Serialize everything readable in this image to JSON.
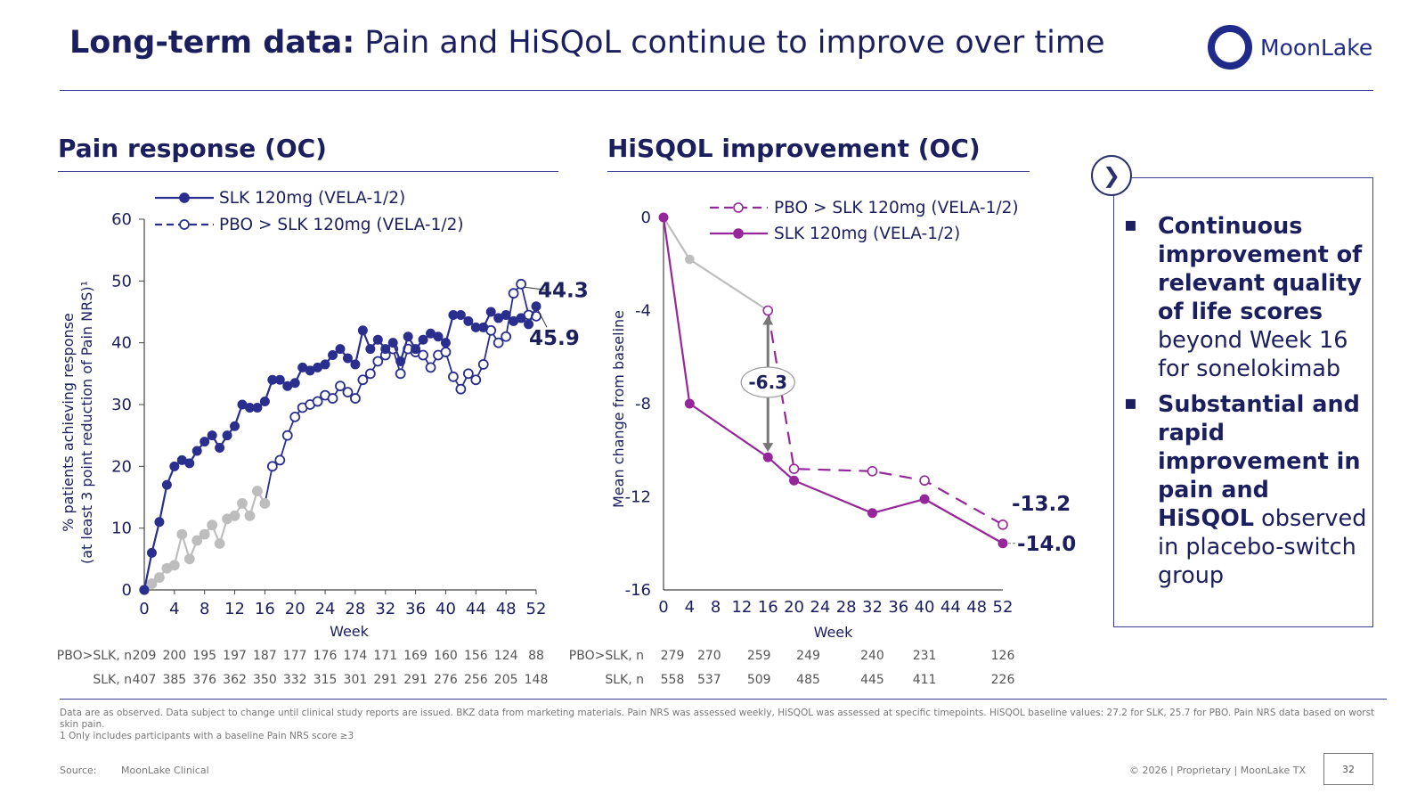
{
  "header": {
    "title_bold": "Long-term data:",
    "title_rest": " Pain and HiSQoL continue to improve over time",
    "logo_text": "MoonLake"
  },
  "left_section_title": "Pain response (OC)",
  "right_section_title": "HiSQOL improvement (OC)",
  "colors": {
    "navy": "#2a2f8e",
    "grey": "#bdbdbd",
    "purple": "#96279a",
    "text": "#1b1f5e"
  },
  "chart_data": [
    {
      "type": "line",
      "title": "Pain response (OC)",
      "xlabel": "Week",
      "ylabel": [
        "% patients achieving response",
        "(at least 3 point reduction of Pain NRS)¹"
      ],
      "xlim": [
        0,
        52
      ],
      "ylim": [
        0,
        60
      ],
      "xticks": [
        0,
        4,
        8,
        12,
        16,
        20,
        24,
        28,
        32,
        36,
        40,
        44,
        48,
        52
      ],
      "yticks": [
        0,
        10,
        20,
        30,
        40,
        50,
        60
      ],
      "legend": [
        "SLK 120mg (VELA-1/2)",
        "PBO > SLK 120mg (VELA-1/2)"
      ],
      "series": [
        {
          "name": "SLK 120mg (VELA-1/2)",
          "x": [
            0,
            1,
            2,
            3,
            4,
            5,
            6,
            7,
            8,
            9,
            10,
            11,
            12,
            13,
            14,
            15,
            16,
            17,
            18,
            19,
            20,
            21,
            22,
            23,
            24,
            25,
            26,
            27,
            28,
            29,
            30,
            31,
            32,
            33,
            34,
            35,
            36,
            37,
            38,
            39,
            40,
            41,
            42,
            43,
            44,
            45,
            46,
            47,
            48,
            49,
            50,
            51,
            52
          ],
          "values": [
            0,
            6,
            11,
            17,
            20,
            21,
            20.5,
            22.5,
            24,
            25,
            23,
            25,
            26.5,
            30,
            29.5,
            29.5,
            30.5,
            34,
            34,
            33,
            33.5,
            36,
            35.5,
            36,
            36.5,
            38,
            39,
            37.5,
            36.5,
            42,
            39,
            40.5,
            39,
            40,
            37,
            41,
            39,
            40.5,
            41.5,
            41,
            40,
            44.5,
            44.5,
            43.5,
            42.5,
            42.5,
            45,
            44,
            44.5,
            43.5,
            44,
            43,
            45.9
          ],
          "end_label": "45.9"
        },
        {
          "name": "PBO > SLK 120mg (VELA-1/2)",
          "x": [
            0,
            1,
            2,
            3,
            4,
            5,
            6,
            7,
            8,
            9,
            10,
            11,
            12,
            13,
            14,
            15,
            16,
            17,
            18,
            19,
            20,
            21,
            22,
            23,
            24,
            25,
            26,
            27,
            28,
            29,
            30,
            31,
            32,
            33,
            34,
            35,
            36,
            37,
            38,
            39,
            40,
            41,
            42,
            43,
            44,
            45,
            46,
            47,
            48,
            49,
            50,
            51,
            52
          ],
          "values": [
            0,
            1,
            2,
            3.5,
            4,
            9,
            5,
            8,
            9,
            10.5,
            7.5,
            11.5,
            12,
            14,
            12,
            16,
            14,
            20,
            21,
            25,
            28,
            29.5,
            30,
            30.5,
            31.5,
            31,
            33,
            32,
            31,
            34,
            35,
            37,
            38,
            39,
            35,
            39,
            38.5,
            38,
            36,
            38,
            38.5,
            34.5,
            32.5,
            35,
            34,
            36.5,
            42,
            40,
            41,
            48,
            49.5,
            44.5,
            44.3
          ],
          "end_label": "44.3"
        }
      ],
      "n_table": {
        "rows": [
          {
            "label": "PBO>SLK, n",
            "values": [
              "209",
              "200",
              "195",
              "197",
              "187",
              "177",
              "176",
              "174",
              "171",
              "169",
              "160",
              "156",
              "124",
              "88"
            ]
          },
          {
            "label": "SLK, n",
            "values": [
              "407",
              "385",
              "376",
              "362",
              "350",
              "332",
              "315",
              "301",
              "291",
              "291",
              "276",
              "256",
              "205",
              "148"
            ]
          }
        ]
      }
    },
    {
      "type": "line",
      "title": "HiSQOL improvement (OC)",
      "xlabel": "Week",
      "ylabel": "Mean change from baseline",
      "xlim": [
        0,
        52
      ],
      "ylim": [
        -16,
        0
      ],
      "xticks": [
        0,
        4,
        8,
        12,
        16,
        20,
        24,
        28,
        32,
        36,
        40,
        44,
        48,
        52
      ],
      "yticks": [
        0,
        -4,
        -8,
        -12,
        -16
      ],
      "legend": [
        "PBO > SLK 120mg (VELA-1/2)",
        "SLK 120mg (VELA-1/2)"
      ],
      "series": [
        {
          "name": "PBO > SLK 120mg (VELA-1/2)",
          "x": [
            0,
            4,
            16,
            20,
            32,
            40,
            52
          ],
          "values": [
            0,
            -1.8,
            -4.0,
            -10.8,
            -10.9,
            -11.3,
            -13.2
          ],
          "end_label": "-13.2"
        },
        {
          "name": "SLK 120mg (VELA-1/2)",
          "x": [
            0,
            4,
            16,
            20,
            32,
            40,
            52
          ],
          "values": [
            0,
            -8.0,
            -10.3,
            -11.3,
            -12.7,
            -12.1,
            -14.0
          ],
          "end_label": "-14.0"
        }
      ],
      "annotations": [
        {
          "text": "-6.3",
          "x": 16
        }
      ],
      "n_table": {
        "columns_x": [
          0,
          4,
          16,
          20,
          32,
          40,
          52
        ],
        "rows": [
          {
            "label": "PBO>SLK, n",
            "values": [
              "279",
              "270",
              "259",
              "249",
              "240",
              "231",
              "126"
            ]
          },
          {
            "label": "SLK, n",
            "values": [
              "558",
              "537",
              "509",
              "485",
              "445",
              "411",
              "226"
            ]
          }
        ]
      }
    }
  ],
  "info_panel": {
    "bullets": [
      {
        "bold": "Continuous improvement of relevant quality of life scores",
        "rest": " beyond Week 16 for sonelokimab"
      },
      {
        "bold": "Substantial and rapid improvement in pain and HiSQOL",
        "rest": " observed in placebo-switch group"
      }
    ]
  },
  "footnote": {
    "line1": "Data are as observed. Data subject to change until clinical study reports are issued. BKZ data from marketing materials. Pain NRS was assessed weekly, HiSQOL was assessed at specific timepoints. HiSQOL baseline values: 27.2 for SLK, 25.7 for PBO. Pain NRS data based on worst skin pain.",
    "line2": "1 Only includes participants with a baseline Pain NRS score ≥3"
  },
  "footer": {
    "source_label": "Source:",
    "source_text": "MoonLake Clinical",
    "copyright": "© 2026  |  Proprietary  |  MoonLake TX",
    "page_number": "32"
  }
}
